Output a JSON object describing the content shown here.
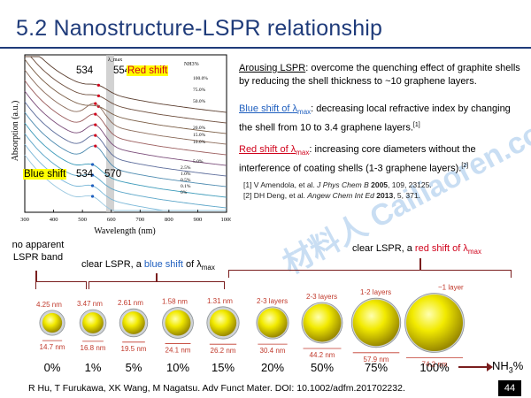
{
  "title": "5.2 Nanostructure-LSPR relationship",
  "colors": {
    "title": "#1f3b7a",
    "red": "#d0021b",
    "blue": "#1f5fbf",
    "dark_red": "#7a1e1e",
    "highlight": "#ffff00",
    "sphere": "#e8e000"
  },
  "chart_data": {
    "type": "line",
    "xlabel": "Wavelength (nm)",
    "ylabel": "Absorption (a.u.)",
    "xlim": [
      300,
      1000
    ],
    "xticks": [
      "300",
      "400",
      "500",
      "600",
      "700",
      "800",
      "900",
      "1000"
    ],
    "band_marker": "λ_max",
    "legend_title": "NH3%",
    "series_labels": [
      "100.0%",
      "75.0%",
      "50.0%",
      "20.0%",
      "15.0%",
      "10.0%",
      "5.0%",
      "2.5%",
      "1.0%",
      "0.5%",
      "0.1%",
      "0%"
    ],
    "annotations": {
      "top_left_value": "534",
      "top_right_value": "554",
      "red_shift": "Red shift",
      "bottom_left_label": "Blue shift",
      "bottom_left_value": "534",
      "bottom_right_value": "570"
    }
  },
  "bullets": [
    {
      "label": "Arousing LSPR",
      "text": ": overcome the quenching effect of graphite shells by reducing the shell thickness to ~10 graphene layers."
    },
    {
      "label_pre": "Blue shift of ",
      "label_sym": "λ",
      "label_sub": "max",
      "text": ": decreasing local refractive index by changing the shell from 10 to 3.4 graphene layers.",
      "sup": "[1]"
    },
    {
      "label_pre": "Red shift of ",
      "label_sym": "λ",
      "label_sub": "max",
      "text": ": increasing core diameters without the interference of coating shells (1-3 graphene layers).",
      "sup": "[2]"
    }
  ],
  "refs": [
    {
      "pre": "[1] V Amendola, et al. ",
      "journal": "J Phys Chem B",
      "year": "2005",
      "post": ", 109, 23125."
    },
    {
      "pre": "[2] DH Deng, et al. ",
      "journal": "Angew Chem Int Ed",
      "year": "2013",
      "post": ", 5, 371."
    }
  ],
  "watermark": "材料人 Cailiaoren.com",
  "callouts": {
    "no_lspr_1": "no apparent",
    "no_lspr_2": "LSPR band",
    "blue_pre": "clear LSPR, a ",
    "blue_mid": "blue shift",
    "blue_post": " of λ",
    "blue_sub": "max",
    "red_pre": "clear LSPR, a ",
    "red_mid": "red shift of λ",
    "red_sub": "max"
  },
  "particles": [
    {
      "pct": "0%",
      "shell": "4.25 nm",
      "core": "14.7 nm"
    },
    {
      "pct": "1%",
      "shell": "3.47 nm",
      "core": "16.8 nm"
    },
    {
      "pct": "5%",
      "shell": "2.61 nm",
      "core": "19.5 nm"
    },
    {
      "pct": "10%",
      "shell": "1.58 nm",
      "core": "24.1 nm"
    },
    {
      "pct": "15%",
      "shell": "1.31 nm",
      "core": "26.2 nm"
    },
    {
      "pct": "20%",
      "shell": "2-3 layers",
      "core": "30.4 nm"
    },
    {
      "pct": "50%",
      "shell": "2-3 layers",
      "core": "44.2 nm"
    },
    {
      "pct": "75%",
      "shell": "1-2 layers",
      "core": "57.9 nm"
    },
    {
      "pct": "100%",
      "shell": "~1 layer",
      "core": "74.2 nm"
    }
  ],
  "axis_label": "NH",
  "axis_sub": "3",
  "axis_suffix": "%",
  "citation": "R Hu, T Furukawa, XK Wang, M Nagatsu. Adv Funct Mater. DOI: 10.1002/adfm.201702232.",
  "page_number": "44"
}
